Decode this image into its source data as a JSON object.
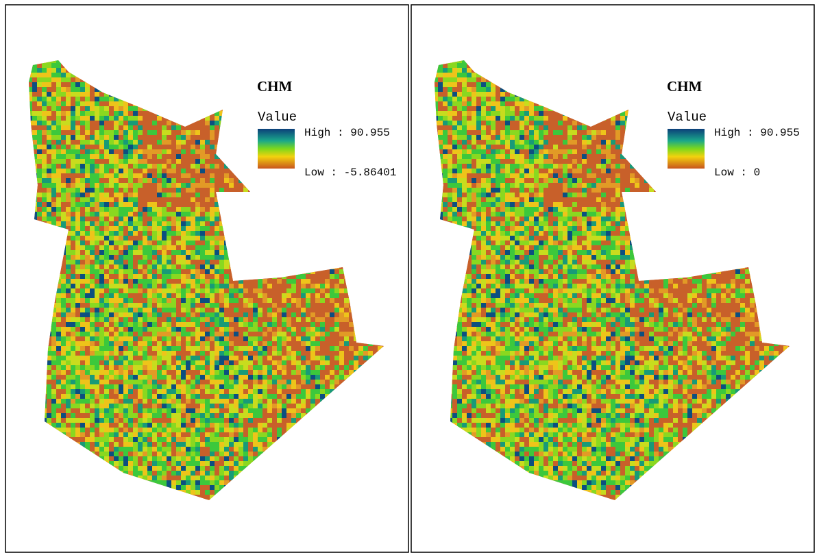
{
  "panels": [
    {
      "legend": {
        "title": "CHM",
        "field": "Value",
        "high": "High : 90.955",
        "low": "Low : -5.86401"
      }
    },
    {
      "legend": {
        "title": "CHM",
        "field": "Value",
        "high": "High : 90.955",
        "low": "Low : 0"
      }
    }
  ]
}
